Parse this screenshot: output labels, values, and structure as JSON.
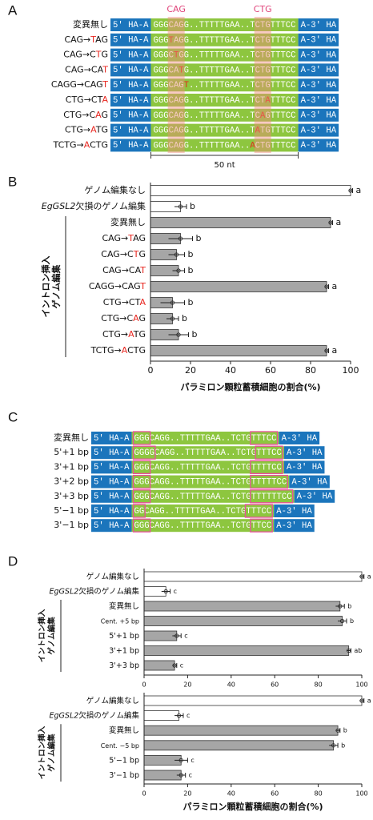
{
  "panel_labels": [
    "A",
    "B",
    "C",
    "D"
  ],
  "panel_a": {
    "headers": [
      "CAG",
      "CTG"
    ],
    "scale_label": "50 nt",
    "rows": [
      {
        "label": [
          "変異無し"
        ],
        "seq": {
          "left": "5' HA-A",
          "middle": [
            "GGGCAGG..TTTTTGAA..TCTGTTTCC"
          ],
          "right": "A-3' HA"
        }
      },
      {
        "label": [
          "CAG→",
          {
            "text": "T",
            "color": "#e8261f"
          },
          "AG"
        ],
        "seq": {
          "left": "5' HA-A",
          "middle": [
            "GGG",
            {
              "text": "T",
              "color": "#e8261f"
            },
            "AGG..TTTTTGAA..TCTGTTTCC"
          ],
          "right": "A-3' HA"
        }
      },
      {
        "label": [
          "CAG→C",
          {
            "text": "T",
            "color": "#e8261f"
          },
          "G"
        ],
        "seq": {
          "left": "5' HA-A",
          "middle": [
            "GGGC",
            {
              "text": "T",
              "color": "#e8261f"
            },
            "GG..TTTTTGAA..TCTGTTTCC"
          ],
          "right": "A-3' HA"
        }
      },
      {
        "label": [
          "CAG→CA",
          {
            "text": "T",
            "color": "#e8261f"
          }
        ],
        "seq": {
          "left": "5' HA-A",
          "middle": [
            "GGGCA",
            {
              "text": "T",
              "color": "#e8261f"
            },
            "G..TTTTTGAA..TCTGTTTCC"
          ],
          "right": "A-3' HA"
        }
      },
      {
        "label": [
          "CAGG→CAG",
          {
            "text": "T",
            "color": "#e8261f"
          }
        ],
        "seq": {
          "left": "5' HA-A",
          "middle": [
            "GGGCAG",
            {
              "text": "T",
              "color": "#e8261f"
            },
            "..TTTTTGAA..TCTGTTTCC"
          ],
          "right": "A-3' HA"
        }
      },
      {
        "label": [
          "CTG→CT",
          {
            "text": "A",
            "color": "#e8261f"
          }
        ],
        "seq": {
          "left": "5' HA-A",
          "middle": [
            "GGGCAGG..TTTTTGAA..TCT",
            {
              "text": "A",
              "color": "#e8261f"
            },
            "TTTCC"
          ],
          "right": "A-3' HA"
        }
      },
      {
        "label": [
          "CTG→C",
          {
            "text": "A",
            "color": "#e8261f"
          },
          "G"
        ],
        "seq": {
          "left": "5' HA-A",
          "middle": [
            "GGGCAGG..TTTTTGAA..TC",
            {
              "text": "A",
              "color": "#e8261f"
            },
            "GTTTCC"
          ],
          "right": "A-3' HA"
        }
      },
      {
        "label": [
          "CTG→",
          {
            "text": "A",
            "color": "#e8261f"
          },
          "TG"
        ],
        "seq": {
          "left": "5' HA-A",
          "middle": [
            "GGGCAGG..TTTTTGAA..T",
            {
              "text": "A",
              "color": "#e8261f"
            },
            "TGTTTCC"
          ],
          "right": "A-3' HA"
        }
      },
      {
        "label": [
          "TCTG→",
          {
            "text": "A",
            "color": "#e8261f"
          },
          "CTG"
        ],
        "seq": {
          "left": "5' HA-A",
          "middle": [
            "GGGCAGG..TTTTTGAA..",
            {
              "text": "A",
              "color": "#e8261f"
            },
            "CTGTTTCC"
          ],
          "right": "A-3' HA"
        }
      }
    ]
  },
  "panel_c": {
    "rows": [
      {
        "label": [
          "変異無し"
        ],
        "seq": {
          "left": "5' HA-A",
          "middle": [
            {
              "text": "GGG",
              "boxed": true
            },
            "CAGG..TTTTTGAA..TCTG",
            {
              "text": "TTTCC",
              "boxed": true
            }
          ],
          "right": "A-3' HA"
        }
      },
      {
        "label": [
          "5'+1 bp"
        ],
        "seq": {
          "left": "5' HA-A",
          "middle": [
            {
              "text": "GGGG",
              "boxed": true
            },
            "CAGG..TTTTTGAA..TCTG",
            {
              "text": "TTTCC",
              "boxed": true
            }
          ],
          "right": "A-3' HA"
        }
      },
      {
        "label": [
          "3'+1 bp"
        ],
        "seq": {
          "left": "5' HA-A",
          "middle": [
            {
              "text": "GGG",
              "boxed": true
            },
            "CAGG..TTTTTGAA..TCTG",
            {
              "text": "TTTTCC",
              "boxed": true
            }
          ],
          "right": "A-3' HA"
        }
      },
      {
        "label": [
          "3'+2 bp"
        ],
        "seq": {
          "left": "5' HA-A",
          "middle": [
            {
              "text": "GGG",
              "boxed": true
            },
            "CAGG..TTTTTGAA..TCTG",
            {
              "text": "TTTTTCC",
              "boxed": true
            }
          ],
          "right": "A-3' HA"
        }
      },
      {
        "label": [
          "3'+3 bp"
        ],
        "seq": {
          "left": "5' HA-A",
          "middle": [
            {
              "text": "GGG",
              "boxed": true
            },
            "CAGG..TTTTTGAA..TCTG",
            {
              "text": "TTTTTTCC",
              "boxed": true
            }
          ],
          "right": "A-3' HA"
        }
      },
      {
        "label": [
          "5'−1 bp"
        ],
        "seq": {
          "left": "5' HA-A",
          "middle": [
            {
              "text": "GG",
              "boxed": true
            },
            "CAGG..TTTTTGAA..TCTG",
            {
              "text": "TTTCC",
              "boxed": true
            }
          ],
          "right": "A-3' HA"
        }
      },
      {
        "label": [
          "3'−1 bp"
        ],
        "seq": {
          "left": "5' HA-A",
          "middle": [
            {
              "text": "GGG",
              "boxed": true
            },
            "CAGG..TTTTTGAA..TCTG",
            {
              "text": "TTCC",
              "boxed": true
            }
          ],
          "right": "A-3' HA"
        }
      }
    ]
  },
  "chart_data": [
    {
      "type": "bar",
      "orientation": "horizontal",
      "categories": [
        [
          "ゲノム編集なし"
        ],
        [
          {
            "text": "EgGSL2",
            "italic": true
          },
          "欠損のゲノム編集"
        ],
        [
          "変異無し"
        ],
        [
          "CAG→",
          {
            "text": "T",
            "color": "#e8261f"
          },
          "AG"
        ],
        [
          "CAG→C",
          {
            "text": "T",
            "color": "#e8261f"
          },
          "G"
        ],
        [
          "CAG→CA",
          {
            "text": "T",
            "color": "#e8261f"
          }
        ],
        [
          "CAGG→CAG",
          {
            "text": "T",
            "color": "#e8261f"
          }
        ],
        [
          "CTG→CT",
          {
            "text": "A",
            "color": "#e8261f"
          }
        ],
        [
          "CTG→C",
          {
            "text": "A",
            "color": "#e8261f"
          },
          "G"
        ],
        [
          "CTG→",
          {
            "text": "A",
            "color": "#e8261f"
          },
          "TG"
        ],
        [
          "TCTG→",
          {
            "text": "A",
            "color": "#e8261f"
          },
          "CTG"
        ]
      ],
      "values": [
        100,
        15,
        90,
        15,
        13,
        14,
        88,
        11,
        11,
        14,
        88
      ],
      "errors": [
        1,
        3,
        1,
        6,
        4,
        3,
        1,
        6,
        3,
        5,
        1
      ],
      "colors": [
        "#ffffff",
        "#ffffff",
        "#a6a6a6",
        "#a6a6a6",
        "#a6a6a6",
        "#a6a6a6",
        "#a6a6a6",
        "#a6a6a6",
        "#a6a6a6",
        "#a6a6a6",
        "#a6a6a6"
      ],
      "annotations": [
        "a",
        "b",
        "a",
        "b",
        "b",
        "b",
        "a",
        "b",
        "b",
        "b",
        "a"
      ],
      "group_label": [
        "イントロン挿入",
        "ゲノム編集"
      ],
      "xlim": [
        0,
        100
      ],
      "xticks": [
        0,
        20,
        40,
        60,
        80,
        100
      ],
      "xlabel": "パラミロン顆粒蓄積細胞の割合(%)"
    },
    {
      "type": "bar",
      "orientation": "horizontal",
      "categories": [
        [
          "ゲノム編集なし"
        ],
        [
          {
            "text": "EgGSL2",
            "italic": true
          },
          "欠損のゲノム編集"
        ],
        [
          "変異無し"
        ],
        [
          "Cent. +5 bp"
        ],
        [
          "5'+1 bp"
        ],
        [
          "3'+1 bp"
        ],
        [
          "3'+3 bp"
        ]
      ],
      "values": [
        100,
        10,
        90,
        91,
        15,
        94,
        14
      ],
      "errors": [
        1,
        2,
        2,
        2,
        2,
        1,
        1
      ],
      "colors": [
        "#ffffff",
        "#ffffff",
        "#a6a6a6",
        "#a6a6a6",
        "#a6a6a6",
        "#a6a6a6",
        "#a6a6a6"
      ],
      "annotations": [
        "a",
        "c",
        "b",
        "b",
        "c",
        "ab",
        "c"
      ],
      "group_label": [
        "イントロン挿入",
        "ゲノム編集"
      ],
      "xlim": [
        0,
        100
      ],
      "xticks": [
        0,
        20,
        40,
        60,
        80,
        100
      ]
    },
    {
      "type": "bar",
      "orientation": "horizontal",
      "categories": [
        [
          "ゲノム編集なし"
        ],
        [
          {
            "text": "EgGSL2",
            "italic": true
          },
          "欠損のゲノム編集"
        ],
        [
          "変異無し"
        ],
        [
          "Cent. −5 bp"
        ],
        [
          "5'−1 bp"
        ],
        [
          "3'−1 bp"
        ]
      ],
      "values": [
        100,
        16,
        89,
        87,
        17,
        17
      ],
      "errors": [
        1,
        2,
        1,
        2,
        3,
        2
      ],
      "colors": [
        "#ffffff",
        "#ffffff",
        "#a6a6a6",
        "#a6a6a6",
        "#a6a6a6",
        "#a6a6a6"
      ],
      "annotations": [
        "a",
        "c",
        "b",
        "b",
        "c",
        "c"
      ],
      "group_label": [
        "イントロン挿入",
        "ゲノム編集"
      ],
      "xlim": [
        0,
        100
      ],
      "xticks": [
        0,
        20,
        40,
        60,
        80,
        100
      ],
      "xlabel": "パラミロン顆粒蓄積細胞の割合(%)"
    }
  ]
}
